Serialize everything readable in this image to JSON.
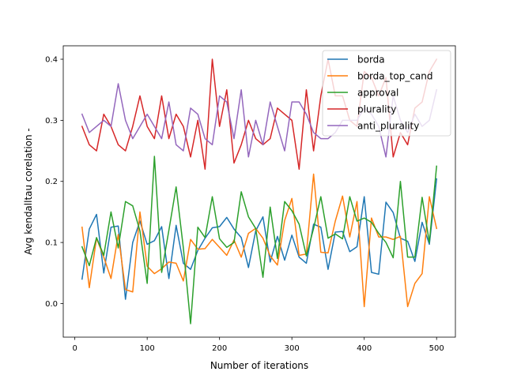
{
  "chart_data": {
    "type": "line",
    "title": "",
    "xlabel": "Number of iterations",
    "ylabel": "Avg kendalltau corelation -",
    "xlim": [
      -16,
      526
    ],
    "ylim": [
      -0.055,
      0.422
    ],
    "x_ticks": [
      0,
      100,
      200,
      300,
      400,
      500
    ],
    "x_tick_labels": [
      "0",
      "100",
      "200",
      "300",
      "400",
      "500"
    ],
    "y_ticks": [
      0.0,
      0.1,
      0.2,
      0.3,
      0.4
    ],
    "y_tick_labels": [
      "0.0",
      "0.1",
      "0.2",
      "0.3",
      "0.4"
    ],
    "grid": false,
    "legend_position": "top-right",
    "x": [
      10,
      20,
      30,
      40,
      50,
      60,
      70,
      80,
      90,
      100,
      110,
      120,
      130,
      140,
      150,
      160,
      170,
      180,
      190,
      200,
      210,
      220,
      230,
      240,
      250,
      260,
      270,
      280,
      290,
      300,
      310,
      320,
      330,
      340,
      350,
      360,
      370,
      380,
      390,
      400,
      410,
      420,
      430,
      440,
      450,
      460,
      470,
      480,
      490,
      500
    ],
    "series": [
      {
        "name": "borda",
        "color": "#1f77b4",
        "values": [
          0.04,
          0.122,
          0.146,
          0.05,
          0.125,
          0.127,
          0.007,
          0.1,
          0.135,
          0.097,
          0.103,
          0.126,
          0.041,
          0.128,
          0.066,
          0.056,
          0.087,
          0.107,
          0.124,
          0.126,
          0.141,
          0.122,
          0.108,
          0.059,
          0.119,
          0.142,
          0.068,
          0.11,
          0.071,
          0.112,
          0.076,
          0.066,
          0.13,
          0.125,
          0.056,
          0.117,
          0.118,
          0.085,
          0.093,
          0.175,
          0.051,
          0.048,
          0.166,
          0.149,
          0.107,
          0.102,
          0.069,
          0.133,
          0.097,
          0.204
        ]
      },
      {
        "name": "borda_top_cand",
        "color": "#ff7f0e",
        "values": [
          0.125,
          0.026,
          0.107,
          0.076,
          0.041,
          0.113,
          0.023,
          0.019,
          0.15,
          0.061,
          0.049,
          0.057,
          0.068,
          0.066,
          0.037,
          0.105,
          0.089,
          0.09,
          0.105,
          0.092,
          0.079,
          0.104,
          0.076,
          0.115,
          0.123,
          0.107,
          0.078,
          0.063,
          0.136,
          0.172,
          0.079,
          0.081,
          0.212,
          0.084,
          0.083,
          0.135,
          0.176,
          0.109,
          0.167,
          -0.005,
          0.14,
          0.109,
          0.109,
          0.105,
          0.11,
          -0.005,
          0.033,
          0.049,
          0.175,
          0.123
        ]
      },
      {
        "name": "approval",
        "color": "#2ca02c",
        "values": [
          0.093,
          0.062,
          0.108,
          0.079,
          0.15,
          0.091,
          0.167,
          0.16,
          0.119,
          0.033,
          0.241,
          0.051,
          0.12,
          0.191,
          0.091,
          -0.033,
          0.125,
          0.108,
          0.175,
          0.106,
          0.092,
          0.1,
          0.183,
          0.142,
          0.123,
          0.043,
          0.158,
          0.074,
          0.167,
          0.152,
          0.13,
          0.078,
          0.123,
          0.175,
          0.107,
          0.114,
          0.106,
          0.175,
          0.135,
          0.14,
          0.133,
          0.115,
          0.1,
          0.075,
          0.2,
          0.076,
          0.076,
          0.174,
          0.1,
          0.225
        ]
      },
      {
        "name": "plurality",
        "color": "#d62728",
        "values": [
          0.29,
          0.26,
          0.25,
          0.31,
          0.29,
          0.26,
          0.25,
          0.29,
          0.34,
          0.29,
          0.27,
          0.34,
          0.27,
          0.31,
          0.29,
          0.24,
          0.3,
          0.22,
          0.4,
          0.29,
          0.35,
          0.23,
          0.26,
          0.3,
          0.27,
          0.26,
          0.27,
          0.32,
          0.31,
          0.3,
          0.22,
          0.35,
          0.25,
          0.34,
          0.4,
          0.34,
          0.34,
          0.3,
          0.29,
          0.38,
          0.37,
          0.34,
          0.37,
          0.24,
          0.28,
          0.26,
          0.32,
          0.33,
          0.38,
          0.4
        ]
      },
      {
        "name": "anti_plurality",
        "color": "#9467bd",
        "values": [
          0.31,
          0.28,
          0.29,
          0.3,
          0.29,
          0.36,
          0.3,
          0.27,
          0.29,
          0.31,
          0.29,
          0.27,
          0.33,
          0.26,
          0.25,
          0.32,
          0.31,
          0.27,
          0.26,
          0.34,
          0.33,
          0.27,
          0.35,
          0.24,
          0.3,
          0.26,
          0.33,
          0.29,
          0.25,
          0.33,
          0.33,
          0.31,
          0.28,
          0.27,
          0.27,
          0.28,
          0.3,
          0.3,
          0.3,
          0.32,
          0.31,
          0.29,
          0.24,
          0.34,
          0.3,
          0.28,
          0.31,
          0.29,
          0.3,
          0.35
        ]
      }
    ]
  }
}
